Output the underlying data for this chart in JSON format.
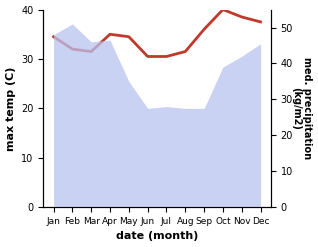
{
  "months": [
    "Jan",
    "Feb",
    "Mar",
    "Apr",
    "May",
    "Jun",
    "Jul",
    "Aug",
    "Sep",
    "Oct",
    "Nov",
    "Dec"
  ],
  "max_temp": [
    34.5,
    32.0,
    31.5,
    35.0,
    34.5,
    30.5,
    30.5,
    31.5,
    36.0,
    40.0,
    38.5,
    37.5
  ],
  "precipitation": [
    48.0,
    51.0,
    46.0,
    46.5,
    35.0,
    27.5,
    28.0,
    27.5,
    27.5,
    39.0,
    42.0,
    45.5
  ],
  "temp_ylim": [
    0,
    40
  ],
  "temp_yticks": [
    0,
    10,
    20,
    30,
    40
  ],
  "precip_ylim": [
    0,
    55
  ],
  "precip_yticks": [
    0,
    10,
    20,
    30,
    40,
    50
  ],
  "xlabel": "date (month)",
  "ylabel_left": "max temp (C)",
  "ylabel_right": "med. precipitation\n(kg/m2)",
  "fill_color": "#b8c4f0",
  "fill_alpha": 0.75,
  "line_color": "#c0392b",
  "line_width": 2.0,
  "bg_color": "#ffffff"
}
